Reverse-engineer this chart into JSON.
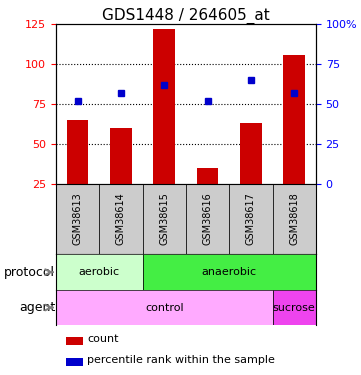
{
  "title": "GDS1448 / 264605_at",
  "samples": [
    "GSM38613",
    "GSM38614",
    "GSM38615",
    "GSM38616",
    "GSM38617",
    "GSM38618"
  ],
  "count_values": [
    65,
    60,
    122,
    35,
    63,
    106
  ],
  "percentile_values": [
    52,
    57,
    62,
    52,
    65,
    57
  ],
  "left_ylim": [
    25,
    125
  ],
  "left_yticks": [
    25,
    50,
    75,
    100,
    125
  ],
  "right_ylim": [
    0,
    100
  ],
  "right_yticks": [
    0,
    25,
    50,
    75,
    100
  ],
  "right_yticklabels": [
    "0",
    "25",
    "50",
    "75",
    "100%"
  ],
  "bar_color": "#cc0000",
  "dot_color": "#0000cc",
  "bar_width": 0.5,
  "protocol_labels": [
    {
      "label": "aerobic",
      "start": 0,
      "end": 2,
      "color": "#ccffcc"
    },
    {
      "label": "anaerobic",
      "start": 2,
      "end": 6,
      "color": "#44ee44"
    }
  ],
  "agent_labels": [
    {
      "label": "control",
      "start": 0,
      "end": 5,
      "color": "#ffaaff"
    },
    {
      "label": "sucrose",
      "start": 5,
      "end": 6,
      "color": "#ee44ee"
    }
  ],
  "protocol_row_label": "protocol",
  "agent_row_label": "agent",
  "legend_count_label": "count",
  "legend_pct_label": "percentile rank within the sample",
  "sample_box_color": "#cccccc",
  "title_fontsize": 11,
  "tick_fontsize": 8,
  "label_fontsize": 9,
  "sample_fontsize": 7,
  "row_fontsize": 8
}
